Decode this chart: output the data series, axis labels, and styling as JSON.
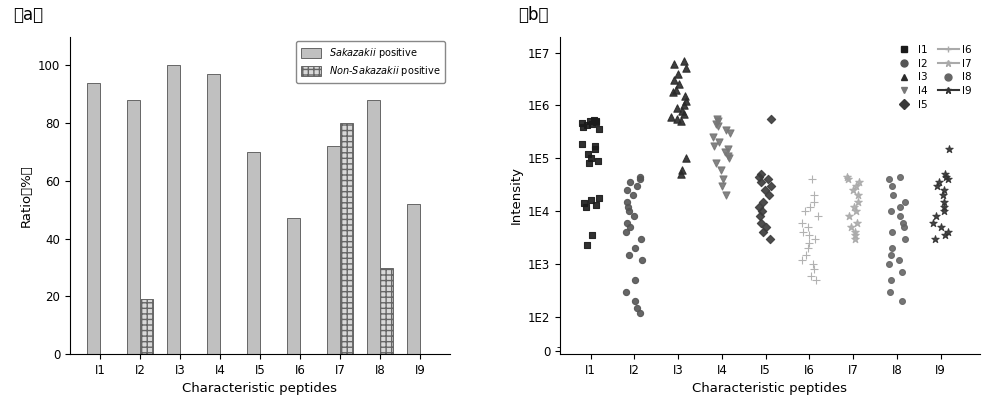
{
  "categories": [
    "I1",
    "I2",
    "I3",
    "I4",
    "I5",
    "I6",
    "I7",
    "I8",
    "I9"
  ],
  "sakazakii_positive": [
    94,
    88,
    100,
    97,
    70,
    47,
    72,
    88,
    52
  ],
  "non_sakazakii_positive": [
    0,
    19,
    0,
    0,
    0,
    0,
    80,
    30,
    0
  ],
  "bar_color_sak": "#c0c0c0",
  "ylabel_a": "Ratio（%）",
  "xlabel_a": "Characteristic peptides",
  "xlabel_b": "Characteristic peptides",
  "ylabel_b": "Intensity",
  "label_a": "（a）",
  "label_b": "（b）",
  "legend_sak": "Sakazakii positive",
  "legend_nonsak": "Non-Sakazakii positive",
  "scatter": {
    "I1": {
      "marker": "s",
      "color": "#1a1a1a",
      "size": 22,
      "values": [
        530000.0,
        500000.0,
        480000.0,
        470000.0,
        510000.0,
        450000.0,
        420000.0,
        390000.0,
        360000.0,
        190000.0,
        170000.0,
        150000.0,
        120000.0,
        100000.0,
        90000.0,
        80000.0,
        18000.0,
        16000.0,
        14000.0,
        13000.0,
        12000.0,
        3500.0,
        2300.0
      ]
    },
    "I2": {
      "marker": "o",
      "color": "#555555",
      "size": 20,
      "values": [
        45000.0,
        40000.0,
        35000.0,
        30000.0,
        25000.0,
        20000.0,
        15000.0,
        12000.0,
        10000.0,
        8000.0,
        6000.0,
        5000.0,
        4000.0,
        3000.0,
        2000.0,
        1500.0,
        1200.0,
        500.0,
        300.0,
        200.0,
        150.0,
        120.0
      ]
    },
    "I3": {
      "marker": "^",
      "color": "#2a2a2a",
      "size": 28,
      "values": [
        7000000.0,
        6000000.0,
        5000000.0,
        4000000.0,
        3000000.0,
        2500000.0,
        2000000.0,
        1800000.0,
        1500000.0,
        1200000.0,
        1000000.0,
        900000.0,
        800000.0,
        700000.0,
        600000.0,
        550000.0,
        500000.0,
        100000.0,
        60000.0,
        50000.0
      ]
    },
    "I4": {
      "marker": "v",
      "color": "#777777",
      "size": 26,
      "values": [
        550000.0,
        500000.0,
        450000.0,
        400000.0,
        350000.0,
        300000.0,
        250000.0,
        200000.0,
        170000.0,
        150000.0,
        130000.0,
        110000.0,
        100000.0,
        80000.0,
        60000.0,
        40000.0,
        30000.0,
        20000.0
      ]
    },
    "I5": {
      "marker": "D",
      "color": "#3a3a3a",
      "size": 18,
      "values": [
        550000.0,
        50000.0,
        45000.0,
        40000.0,
        35000.0,
        30000.0,
        25000.0,
        20000.0,
        15000.0,
        12000.0,
        10000.0,
        8000.0,
        6000.0,
        5000.0,
        4000.0,
        3000.0
      ]
    },
    "I6": {
      "marker": "+",
      "color": "#aaaaaa",
      "size": 35,
      "values": [
        40000.0,
        20000.0,
        15000.0,
        12000.0,
        10000.0,
        8000.0,
        6000.0,
        5000.0,
        4000.0,
        3500.0,
        3000.0,
        2500.0,
        2000.0,
        1500.0,
        1200.0,
        1000.0,
        800.0,
        600.0,
        500.0
      ]
    },
    "I7": {
      "marker": "*",
      "color": "#aaaaaa",
      "size": 32,
      "values": [
        45000.0,
        40000.0,
        35000.0,
        30000.0,
        25000.0,
        20000.0,
        15000.0,
        12000.0,
        10000.0,
        8000.0,
        6000.0,
        5000.0,
        4000.0,
        3500.0,
        3000.0
      ]
    },
    "I8": {
      "marker": "o",
      "color": "#666666",
      "size": 18,
      "values": [
        45000.0,
        40000.0,
        30000.0,
        20000.0,
        15000.0,
        12000.0,
        10000.0,
        8000.0,
        6000.0,
        5000.0,
        4000.0,
        3000.0,
        2000.0,
        1500.0,
        1200.0,
        1000.0,
        700.0,
        500.0,
        300.0,
        200.0
      ]
    },
    "I9": {
      "marker": "*",
      "color": "#333333",
      "size": 30,
      "values": [
        150000.0,
        50000.0,
        45000.0,
        40000.0,
        35000.0,
        30000.0,
        25000.0,
        20000.0,
        15000.0,
        12000.0,
        10000.0,
        8000.0,
        6000.0,
        5000.0,
        4000.0,
        3500.0,
        3000.0
      ]
    }
  }
}
